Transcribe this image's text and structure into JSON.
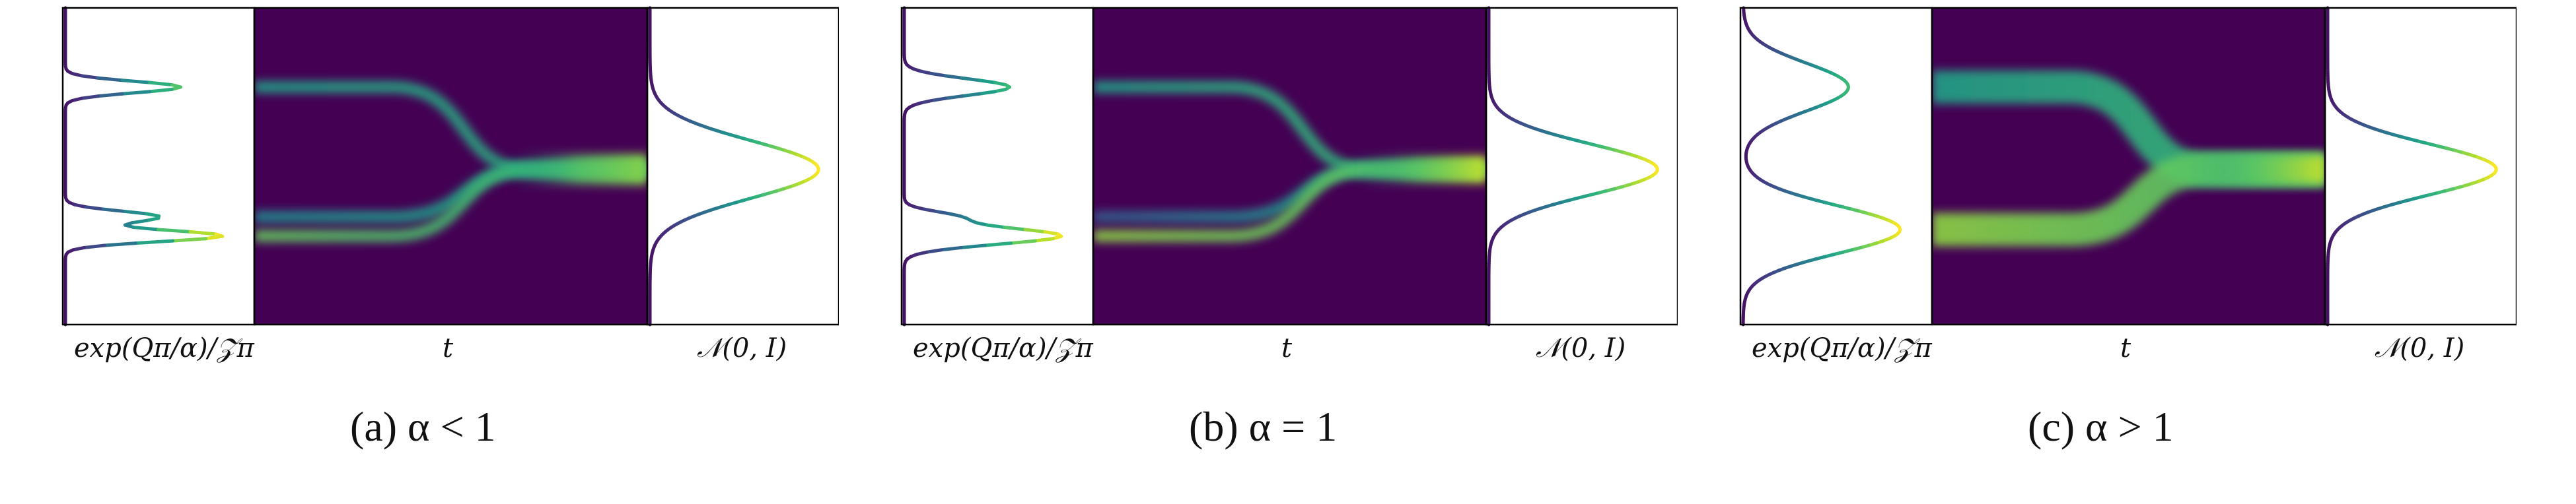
{
  "colors": {
    "background_dark": "#440154",
    "viridis": [
      "#440154",
      "#482878",
      "#3e4989",
      "#31688e",
      "#26828e",
      "#1f9e89",
      "#35b779",
      "#6ece58",
      "#b5de2b",
      "#fde725"
    ]
  },
  "panels": [
    {
      "id": "a",
      "caption": "(a)  α < 1",
      "left_label": "exp(Qπ/α)/𝒵π",
      "middle_label": "t",
      "right_label": "𝒩(0, I)",
      "target_modes": [
        {
          "pos": 0.25,
          "width": 0.018,
          "weight": 0.55
        },
        {
          "pos": 0.66,
          "width": 0.018,
          "weight": 0.45
        },
        {
          "pos": 0.72,
          "width": 0.018,
          "weight": 0.75
        }
      ],
      "source": {
        "pos": 0.51,
        "width": 0.09,
        "weight": 0.82
      }
    },
    {
      "id": "b",
      "caption": "(b)  α = 1",
      "left_label": "exp(Qπ/α)/𝒵π",
      "middle_label": "t",
      "right_label": "𝒩(0, I)",
      "target_modes": [
        {
          "pos": 0.25,
          "width": 0.026,
          "weight": 0.55
        },
        {
          "pos": 0.66,
          "width": 0.018,
          "weight": 0.25
        },
        {
          "pos": 0.72,
          "width": 0.026,
          "weight": 0.82
        }
      ],
      "source": {
        "pos": 0.51,
        "width": 0.08,
        "weight": 0.92
      }
    },
    {
      "id": "c",
      "caption": "(c)  α > 1",
      "left_label": "exp(Qπ/α)/𝒵π",
      "middle_label": "t",
      "right_label": "𝒩(0, I)",
      "target_modes": [
        {
          "pos": 0.25,
          "width": 0.075,
          "weight": 0.55
        },
        {
          "pos": 0.7,
          "width": 0.075,
          "weight": 0.82
        }
      ],
      "source": {
        "pos": 0.51,
        "width": 0.08,
        "weight": 0.92
      }
    }
  ]
}
